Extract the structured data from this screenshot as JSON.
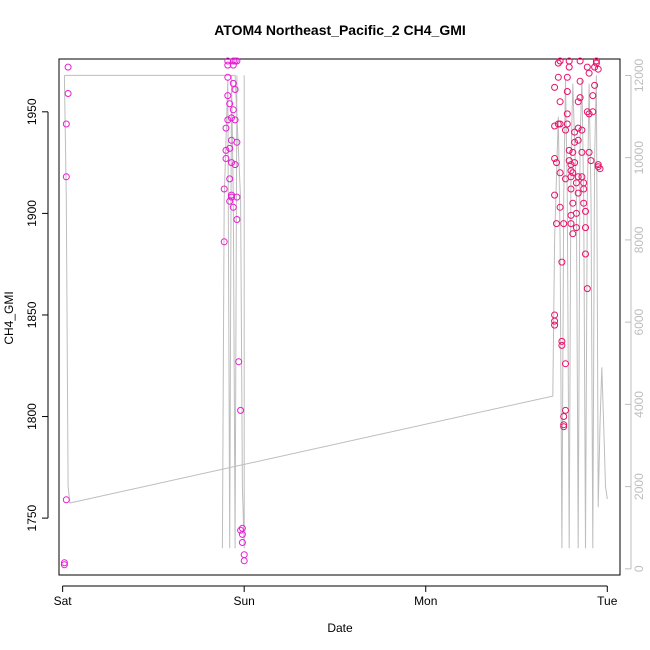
{
  "chart_data": {
    "type": "scatter",
    "title": "ATOM4 Northeast_Pacific_2 CH4_GMI",
    "xlabel": "Date",
    "ylabel": "CH4_GMI",
    "y2label": "",
    "xlim": [
      -0.02,
      3.07
    ],
    "ylim": [
      1722,
      1976
    ],
    "y2lim": [
      -150,
      12400
    ],
    "x_ticks": [
      {
        "value": 0,
        "label": "Sat"
      },
      {
        "value": 1,
        "label": "Sun"
      },
      {
        "value": 2,
        "label": "Mon"
      },
      {
        "value": 3,
        "label": "Tue"
      }
    ],
    "y_ticks": [
      1750,
      1800,
      1850,
      1900,
      1950
    ],
    "y2_ticks": [
      0,
      2000,
      4000,
      6000,
      8000,
      10000,
      12000
    ],
    "grid": false,
    "legend": "none",
    "colors": {
      "axis": "#000000",
      "secondary_axis": "#bdbdbd",
      "line": "#bdbdbd",
      "points_early": "#e81ed2",
      "points_late": "#e8116a"
    },
    "line_series": {
      "name": "",
      "axis": "right",
      "points": [
        [
          0.01,
          12000
        ],
        [
          0.02,
          9000
        ],
        [
          0.03,
          2000
        ],
        [
          0.04,
          1600
        ],
        [
          2.7,
          4200
        ],
        [
          2.71,
          8000
        ],
        [
          2.73,
          11000
        ],
        [
          2.74,
          8000
        ],
        [
          2.75,
          500
        ],
        [
          2.76,
          9000
        ],
        [
          2.77,
          11900
        ],
        [
          2.78,
          9000
        ],
        [
          2.79,
          500
        ],
        [
          2.8,
          10000
        ],
        [
          2.81,
          11800
        ],
        [
          2.83,
          9000
        ],
        [
          2.84,
          500
        ],
        [
          2.85,
          10500
        ],
        [
          2.86,
          11900
        ],
        [
          2.87,
          9000
        ],
        [
          2.88,
          500
        ],
        [
          2.89,
          9000
        ],
        [
          2.9,
          11800
        ],
        [
          2.91,
          9000
        ],
        [
          2.92,
          500
        ],
        [
          2.93,
          10000
        ],
        [
          2.94,
          12000
        ],
        [
          2.95,
          1500
        ],
        [
          2.96,
          3500
        ],
        [
          2.97,
          4900
        ],
        [
          2.98,
          3500
        ],
        [
          2.99,
          2000
        ],
        [
          3.0,
          1700
        ]
      ],
      "break_segments": [
        [
          [
            0.01,
            12000
          ],
          [
            0.95,
            12000
          ],
          [
            0.96,
            11000
          ],
          [
            0.98,
            9000
          ],
          [
            0.99,
            2000
          ],
          [
            1.0,
            500
          ],
          [
            1.0,
            12000
          ]
        ],
        [
          [
            0.88,
            500
          ],
          [
            0.89,
            9000
          ],
          [
            0.91,
            11900
          ],
          [
            0.92,
            500
          ],
          [
            0.93,
            12000
          ],
          [
            0.94,
            9000
          ],
          [
            0.95,
            500
          ],
          [
            0.96,
            12000
          ]
        ]
      ]
    },
    "point_series": {
      "name": "",
      "axis": "left",
      "points": [
        [
          0.01,
          1728
        ],
        [
          0.01,
          1727
        ],
        [
          0.02,
          1759
        ],
        [
          0.02,
          1918
        ],
        [
          0.02,
          1944
        ],
        [
          0.03,
          1959
        ],
        [
          0.03,
          1972
        ],
        [
          0.89,
          1886
        ],
        [
          0.89,
          1912
        ],
        [
          0.9,
          1927
        ],
        [
          0.9,
          1931
        ],
        [
          0.9,
          1942
        ],
        [
          0.91,
          1946
        ],
        [
          0.91,
          1958
        ],
        [
          0.91,
          1967
        ],
        [
          0.91,
          1973
        ],
        [
          0.91,
          1975
        ],
        [
          0.92,
          1906
        ],
        [
          0.92,
          1917
        ],
        [
          0.92,
          1932
        ],
        [
          0.92,
          1954
        ],
        [
          0.93,
          1908
        ],
        [
          0.93,
          1909
        ],
        [
          0.93,
          1925
        ],
        [
          0.93,
          1936
        ],
        [
          0.93,
          1947
        ],
        [
          0.94,
          1903
        ],
        [
          0.94,
          1951
        ],
        [
          0.94,
          1964
        ],
        [
          0.94,
          1973
        ],
        [
          0.94,
          1975
        ],
        [
          0.95,
          1924
        ],
        [
          0.95,
          1946
        ],
        [
          0.95,
          1961
        ],
        [
          0.95,
          1975
        ],
        [
          0.96,
          1897
        ],
        [
          0.96,
          1908
        ],
        [
          0.96,
          1935
        ],
        [
          0.96,
          1975
        ],
        [
          0.97,
          1827
        ],
        [
          0.98,
          1803
        ],
        [
          0.98,
          1744
        ],
        [
          0.99,
          1745
        ],
        [
          0.99,
          1742
        ],
        [
          0.99,
          1738
        ],
        [
          1.0,
          1732
        ],
        [
          1.0,
          1729
        ],
        [
          2.71,
          1850
        ],
        [
          2.71,
          1847
        ],
        [
          2.71,
          1845
        ],
        [
          2.71,
          1909
        ],
        [
          2.71,
          1927
        ],
        [
          2.71,
          1943
        ],
        [
          2.71,
          1962
        ],
        [
          2.72,
          1895
        ],
        [
          2.72,
          1925
        ],
        [
          2.73,
          1944
        ],
        [
          2.73,
          1967
        ],
        [
          2.73,
          1974
        ],
        [
          2.74,
          1975
        ],
        [
          2.74,
          1955
        ],
        [
          2.74,
          1944
        ],
        [
          2.74,
          1920
        ],
        [
          2.74,
          1903
        ],
        [
          2.75,
          1876
        ],
        [
          2.75,
          1837
        ],
        [
          2.75,
          1835
        ],
        [
          2.76,
          1895
        ],
        [
          2.76,
          1800
        ],
        [
          2.76,
          1796
        ],
        [
          2.76,
          1795
        ],
        [
          2.77,
          1803
        ],
        [
          2.77,
          1826
        ],
        [
          2.77,
          1917
        ],
        [
          2.77,
          1941
        ],
        [
          2.78,
          1944
        ],
        [
          2.78,
          1949
        ],
        [
          2.78,
          1960
        ],
        [
          2.78,
          1967
        ],
        [
          2.79,
          1972
        ],
        [
          2.79,
          1975
        ],
        [
          2.79,
          1931
        ],
        [
          2.79,
          1926
        ],
        [
          2.8,
          1924
        ],
        [
          2.8,
          1921
        ],
        [
          2.8,
          1918
        ],
        [
          2.8,
          1912
        ],
        [
          2.8,
          1899
        ],
        [
          2.8,
          1895
        ],
        [
          2.81,
          1890
        ],
        [
          2.81,
          1905
        ],
        [
          2.81,
          1920
        ],
        [
          2.81,
          1930
        ],
        [
          2.82,
          1935
        ],
        [
          2.82,
          1940
        ],
        [
          2.82,
          1925
        ],
        [
          2.83,
          1915
        ],
        [
          2.83,
          1900
        ],
        [
          2.83,
          1893
        ],
        [
          2.84,
          1910
        ],
        [
          2.84,
          1918
        ],
        [
          2.84,
          1936
        ],
        [
          2.84,
          1942
        ],
        [
          2.84,
          1955
        ],
        [
          2.85,
          1975
        ],
        [
          2.85,
          1965
        ],
        [
          2.85,
          1957
        ],
        [
          2.86,
          1941
        ],
        [
          2.86,
          1930
        ],
        [
          2.86,
          1918
        ],
        [
          2.87,
          1915
        ],
        [
          2.87,
          1912
        ],
        [
          2.87,
          1905
        ],
        [
          2.88,
          1901
        ],
        [
          2.88,
          1880
        ],
        [
          2.88,
          1893
        ],
        [
          2.89,
          1863
        ],
        [
          2.89,
          1950
        ],
        [
          2.89,
          1972
        ],
        [
          2.9,
          1969
        ],
        [
          2.9,
          1949
        ],
        [
          2.9,
          1930
        ],
        [
          2.91,
          1926
        ],
        [
          2.92,
          1950
        ],
        [
          2.92,
          1958
        ],
        [
          2.93,
          1963
        ],
        [
          2.93,
          1972
        ],
        [
          2.94,
          1975
        ],
        [
          2.94,
          1974
        ],
        [
          2.95,
          1971
        ],
        [
          2.95,
          1924
        ],
        [
          2.95,
          1923
        ],
        [
          2.96,
          1922
        ]
      ]
    }
  }
}
